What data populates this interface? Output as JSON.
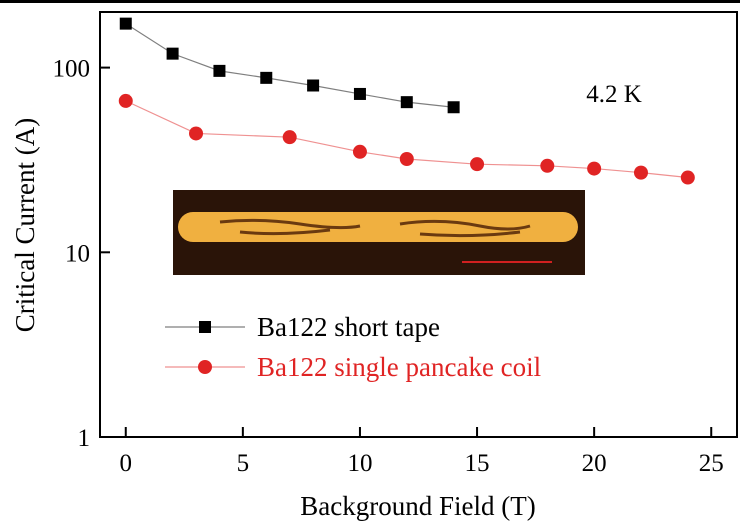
{
  "chart_data": {
    "type": "line",
    "x_label": "Background Field (T)",
    "y_label": "Critical Current (A)",
    "annotation": "4.2 K",
    "xlim": [
      -1.1,
      26.1
    ],
    "xticks": [
      0,
      5,
      10,
      15,
      20,
      25
    ],
    "ylim": [
      1,
      200
    ],
    "yticks": [
      1,
      10,
      100
    ],
    "log_y": true,
    "legend": "lower left",
    "series": [
      {
        "name": "Ba122 short tape",
        "color": "#000000",
        "marker": "square",
        "x": [
          0,
          2,
          4,
          6,
          8,
          10,
          12,
          14
        ],
        "values": [
          173,
          119,
          96,
          88,
          80,
          72,
          65,
          61
        ]
      },
      {
        "name": "Ba122 single pancake coil",
        "color": "#e02424",
        "marker": "circle",
        "x": [
          0,
          3,
          7,
          10,
          12,
          15,
          18,
          20,
          22,
          24
        ],
        "values": [
          66,
          44,
          42,
          35,
          32,
          30,
          29.4,
          28.4,
          27,
          25.4
        ]
      }
    ]
  }
}
